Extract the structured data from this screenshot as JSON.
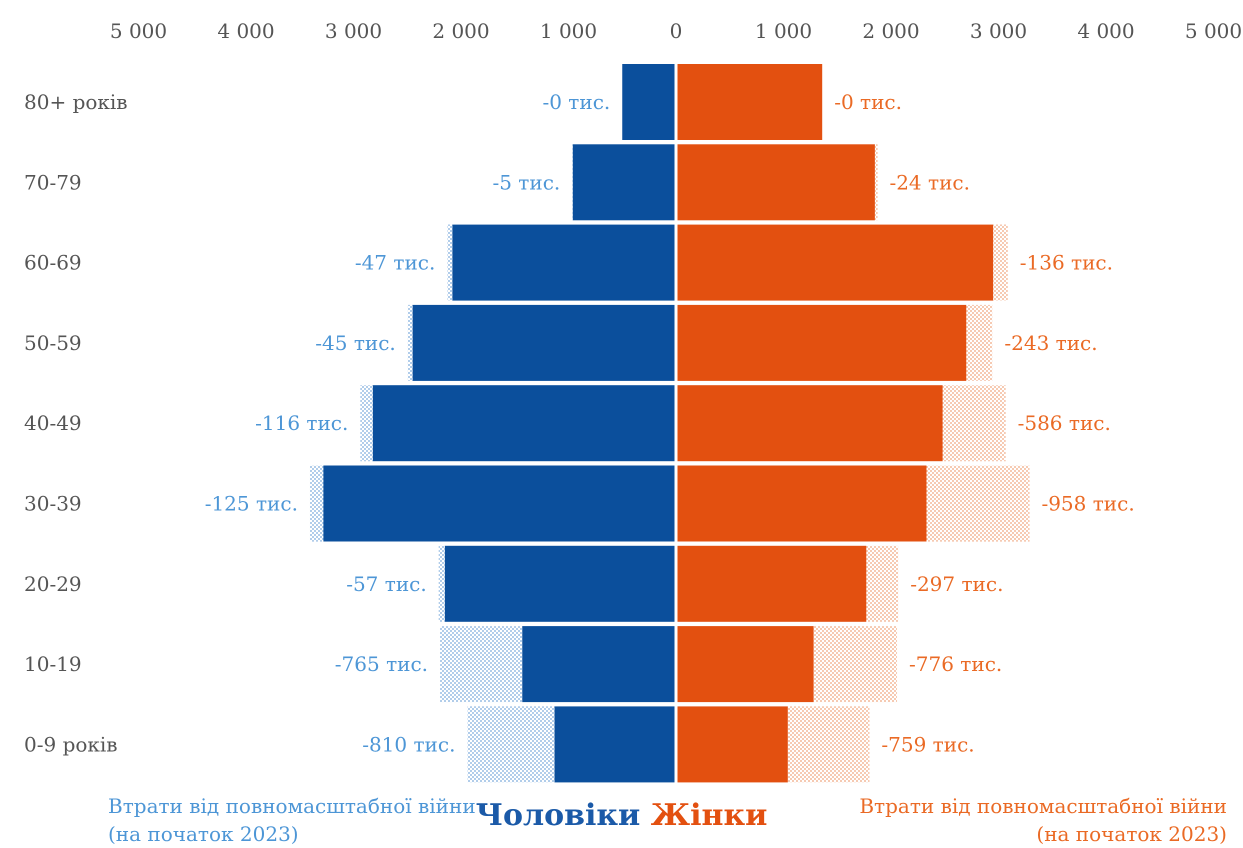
{
  "chart_data": {
    "type": "bar",
    "orientation": "horizontal-pyramid",
    "categories": [
      "80+ років",
      "70-79",
      "60-69",
      "50-59",
      "40-49",
      "30-39",
      "20-29",
      "10-19",
      "0-9 років"
    ],
    "x_ticks": [
      "5 000",
      "4 000",
      "3 000",
      "2 000",
      "1 000",
      "0",
      "1 000",
      "2 000",
      "3 000",
      "4 000",
      "5 000"
    ],
    "xlim": [
      -5000,
      5000
    ],
    "series": [
      {
        "name": "Чоловіки",
        "side": "left",
        "color": "#0b4f9c",
        "values": [
          500,
          960,
          2080,
          2450,
          2820,
          3280,
          2150,
          1430,
          1130
        ],
        "losses": [
          0,
          5,
          47,
          45,
          116,
          125,
          57,
          765,
          810
        ],
        "loss_labels": [
          "-0 тис.",
          "-5 тис.",
          "-47 тис.",
          "-45 тис.",
          "-116 тис.",
          "-125 тис.",
          "-57 тис.",
          "-765 тис.",
          "-810 тис."
        ],
        "label_color": "#4d96d6"
      },
      {
        "name": "Жінки",
        "side": "right",
        "color": "#e35010",
        "values": [
          1360,
          1850,
          2950,
          2700,
          2480,
          2330,
          1770,
          1280,
          1040
        ],
        "losses": [
          0,
          24,
          136,
          243,
          586,
          958,
          297,
          776,
          759
        ],
        "loss_labels": [
          "-0 тис.",
          "-24 тис.",
          "-136 тис.",
          "-243 тис.",
          "-586 тис.",
          "-958 тис.",
          "-297 тис.",
          "-776 тис.",
          "-759 тис."
        ],
        "label_color": "#ea6a25"
      }
    ],
    "legend": {
      "men": "Чоловіки",
      "women": "Жінки",
      "placement": "bottom-center"
    },
    "annotations": {
      "left": [
        "Втрати від повномасштабної війни",
        "(на початок 2023)"
      ],
      "right": [
        "Втрати від повномасштабної війни",
        "(на початок 2023)"
      ]
    }
  }
}
